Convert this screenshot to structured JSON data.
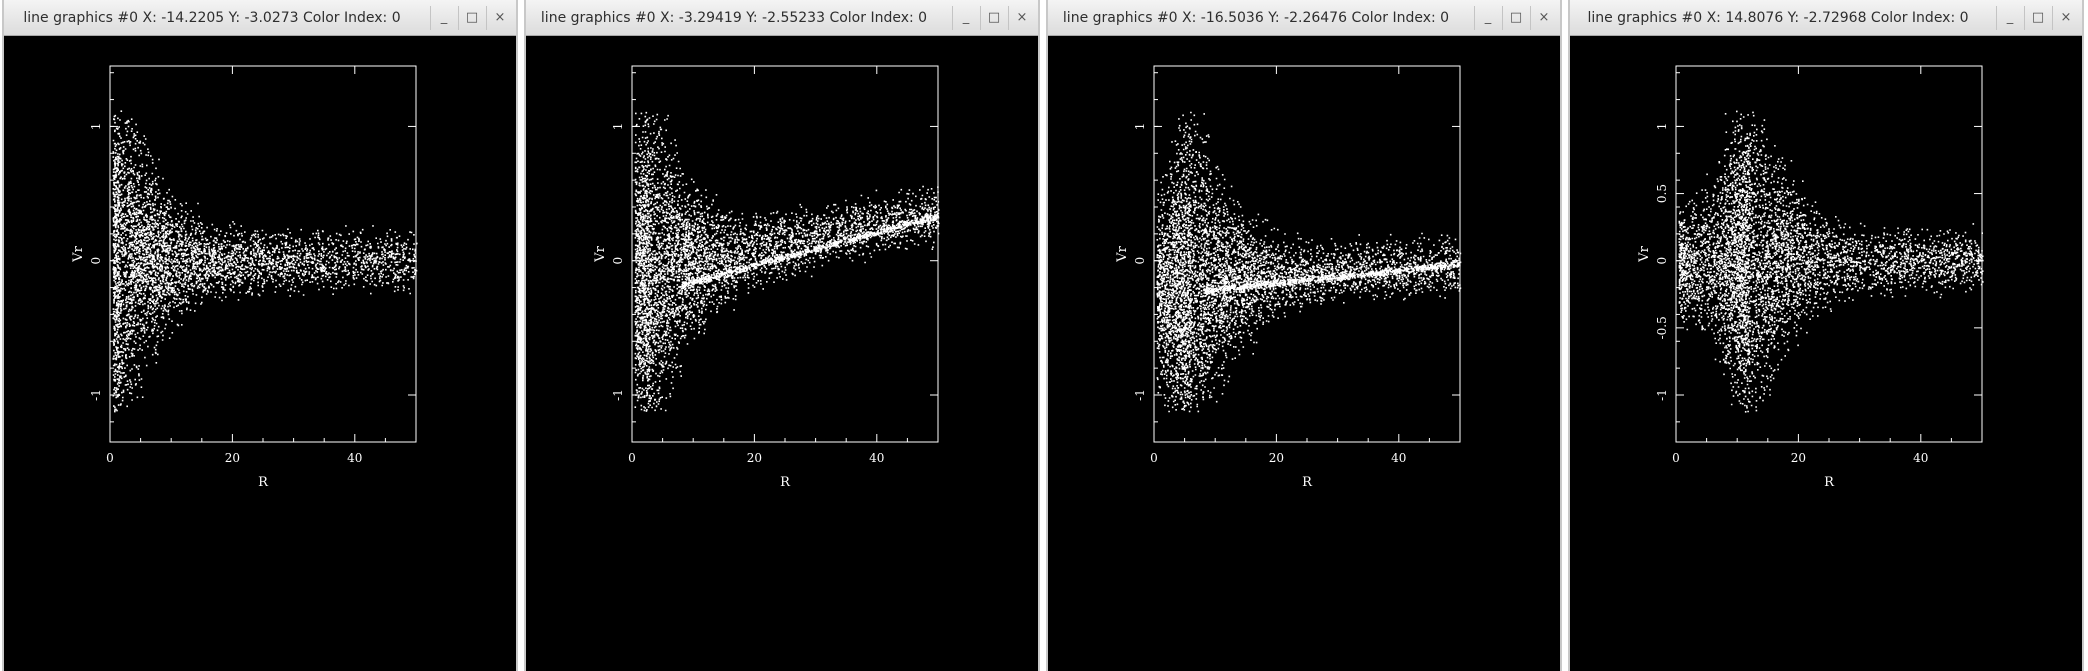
{
  "windows": [
    {
      "title": "line graphics #0 X: -14.2205 Y: -3.0273 Color Index: 0",
      "yticks": [
        "1",
        "0",
        "-1"
      ],
      "profile": {
        "peak_r": 1.5,
        "tail_center": 0.0,
        "tail_slope": 0.0,
        "curve": "none"
      }
    },
    {
      "title": "line graphics #0 X: -3.29419 Y: -2.55233 Color Index: 0",
      "yticks": [
        "1",
        "0",
        "-1"
      ],
      "profile": {
        "peak_r": 3.0,
        "tail_center": 0.35,
        "tail_slope": 0.0,
        "curve": "rising"
      }
    },
    {
      "title": "line graphics #0 X: -16.5036 Y: -2.26476 Color Index: 0",
      "yticks": [
        "1",
        "0",
        "-1"
      ],
      "profile": {
        "peak_r": 6.0,
        "tail_center": 0.05,
        "tail_slope": 0.0,
        "curve": "approach"
      }
    },
    {
      "title": "line graphics #0 X: 14.8076 Y: -2.72968 Color Index: 0",
      "yticks": [
        "1",
        "0.5",
        "0",
        "-0.5",
        "-1"
      ],
      "profile": {
        "peak_r": 12.0,
        "tail_center": 0.0,
        "tail_slope": 0.0,
        "curve": "faint"
      }
    }
  ],
  "controls": {
    "minimize": "_",
    "maximize": "□",
    "close": "×"
  },
  "plot": {
    "xlabel": "R",
    "ylabel": "Vr",
    "xticks": [
      "0",
      "20",
      "40"
    ],
    "xlim": [
      0,
      50
    ],
    "ylim": [
      -1.35,
      1.45
    ]
  },
  "colors": {
    "plot_bg": "#000000",
    "points": "#ffffff",
    "titlebar": "#e6e6e6"
  }
}
